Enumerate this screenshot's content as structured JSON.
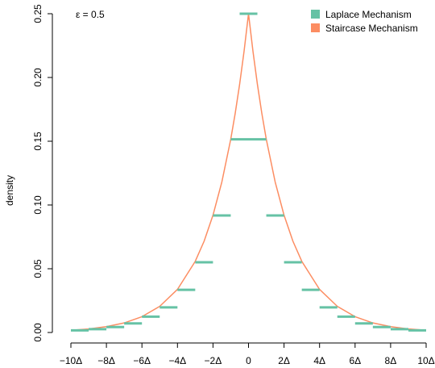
{
  "chart_data": {
    "type": "line",
    "title": "",
    "xlabel": "",
    "ylabel": "density",
    "annotation": "ε = 0.5",
    "xlim": [
      -10,
      10
    ],
    "ylim": [
      0,
      0.25
    ],
    "x_ticks": [
      {
        "value": -10,
        "label": "−10Δ"
      },
      {
        "value": -8,
        "label": "−8Δ"
      },
      {
        "value": -6,
        "label": "−6Δ"
      },
      {
        "value": -4,
        "label": "−4Δ"
      },
      {
        "value": -2,
        "label": "−2Δ"
      },
      {
        "value": 0,
        "label": "0"
      },
      {
        "value": 2,
        "label": "2Δ"
      },
      {
        "value": 4,
        "label": "4Δ"
      },
      {
        "value": 6,
        "label": "6Δ"
      },
      {
        "value": 8,
        "label": "8Δ"
      },
      {
        "value": 10,
        "label": "10Δ"
      }
    ],
    "y_ticks": [
      {
        "value": 0,
        "label": "0.00"
      },
      {
        "value": 0.05,
        "label": "0.05"
      },
      {
        "value": 0.1,
        "label": "0.10"
      },
      {
        "value": 0.15,
        "label": "0.15"
      },
      {
        "value": 0.2,
        "label": "0.20"
      },
      {
        "value": 0.25,
        "label": "0.25"
      }
    ],
    "legend": {
      "position": "top-right",
      "entries": [
        {
          "name": "Laplace Mechanism",
          "color": "#66c2a5"
        },
        {
          "name": "Staircase Mechanism",
          "color": "#fc8d62"
        }
      ]
    },
    "series": [
      {
        "name": "Laplace Mechanism",
        "color": "#66c2a5",
        "kind": "step-segments",
        "segments": [
          {
            "x0": -10,
            "x1": -9,
            "y": 0.0017
          },
          {
            "x0": -9,
            "x1": -8,
            "y": 0.0026
          },
          {
            "x0": -8,
            "x1": -7,
            "y": 0.0043
          },
          {
            "x0": -7,
            "x1": -6,
            "y": 0.0071
          },
          {
            "x0": -6,
            "x1": -5,
            "y": 0.0124
          },
          {
            "x0": -5,
            "x1": -4,
            "y": 0.0197
          },
          {
            "x0": -4,
            "x1": -3,
            "y": 0.0335
          },
          {
            "x0": -3,
            "x1": -2,
            "y": 0.0551
          },
          {
            "x0": -2,
            "x1": -1,
            "y": 0.0918
          },
          {
            "x0": -1,
            "x1": 0,
            "y": 0.1515
          },
          {
            "x0": -0.5,
            "x1": 0.5,
            "y": 0.25
          },
          {
            "x0": 0,
            "x1": 1,
            "y": 0.1515
          },
          {
            "x0": 1,
            "x1": 2,
            "y": 0.0918
          },
          {
            "x0": 2,
            "x1": 3,
            "y": 0.0551
          },
          {
            "x0": 3,
            "x1": 4,
            "y": 0.0335
          },
          {
            "x0": 4,
            "x1": 5,
            "y": 0.0197
          },
          {
            "x0": 5,
            "x1": 6,
            "y": 0.0124
          },
          {
            "x0": 6,
            "x1": 7,
            "y": 0.0071
          },
          {
            "x0": 7,
            "x1": 8,
            "y": 0.0043
          },
          {
            "x0": 8,
            "x1": 9,
            "y": 0.0026
          },
          {
            "x0": 9,
            "x1": 10,
            "y": 0.0017
          }
        ]
      },
      {
        "name": "Staircase Mechanism",
        "color": "#fc8d62",
        "kind": "curve",
        "x": [
          -10,
          -9,
          -8,
          -7,
          -6,
          -5,
          -4,
          -3,
          -2.5,
          -2,
          -1.5,
          -1,
          -0.75,
          -0.5,
          -0.25,
          0,
          0.25,
          0.5,
          0.75,
          1,
          1.5,
          2,
          2.5,
          3,
          4,
          5,
          6,
          7,
          8,
          9,
          10
        ],
        "y": [
          0.0017,
          0.0028,
          0.0046,
          0.0075,
          0.0124,
          0.0205,
          0.0338,
          0.0558,
          0.0716,
          0.092,
          0.1181,
          0.1516,
          0.1718,
          0.1947,
          0.2206,
          0.25,
          0.2206,
          0.1947,
          0.1718,
          0.1516,
          0.1181,
          0.092,
          0.0716,
          0.0558,
          0.0338,
          0.0205,
          0.0124,
          0.0075,
          0.0046,
          0.0028,
          0.0017
        ]
      }
    ]
  }
}
